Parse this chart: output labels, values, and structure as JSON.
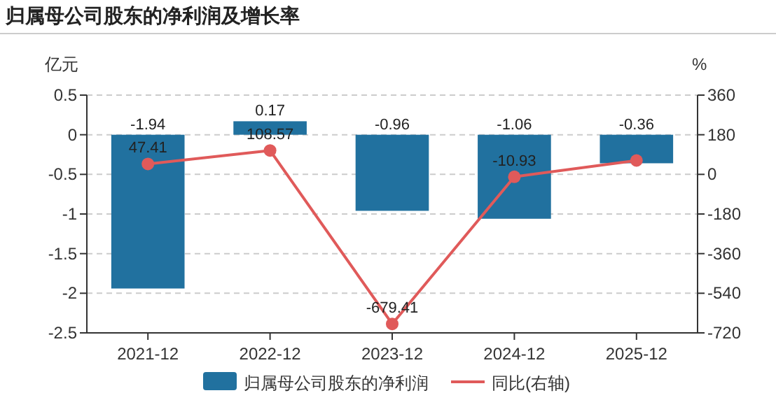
{
  "chart_data": {
    "type": "bar",
    "title": "归属母公司股东的净利润及增长率",
    "ylabel": "亿元",
    "y2label": "%",
    "categories": [
      "2021-12",
      "2022-12",
      "2023-12",
      "2024-12",
      "2025-12"
    ],
    "series": [
      {
        "name": "归属母公司股东的净利润",
        "color": "#21719f",
        "values": [
          -1.94,
          0.17,
          -0.96,
          -1.06,
          -0.36
        ],
        "value_labels": [
          "-1.94",
          "0.17",
          "-0.96",
          "-1.06",
          "-0.36"
        ]
      },
      {
        "name": "同比(右轴)",
        "type": "line",
        "axis": "y2",
        "color": "#e05a5a",
        "values": [
          47.41,
          108.57,
          -679.41,
          -10.93,
          63
        ],
        "value_labels": [
          "47.41",
          "108.57",
          "-679.41",
          "-10.93",
          null
        ]
      }
    ],
    "ylim": [
      -2.5,
      0.5
    ],
    "yticks": [
      -2.5,
      -2,
      -1.5,
      -1,
      -0.5,
      0,
      0.5
    ],
    "y2lim": [
      -720,
      360
    ],
    "y2ticks": [
      -720,
      -540,
      -360,
      -180,
      0,
      180,
      360
    ],
    "grid": "y",
    "legend": "bottom",
    "marker": "circle"
  }
}
